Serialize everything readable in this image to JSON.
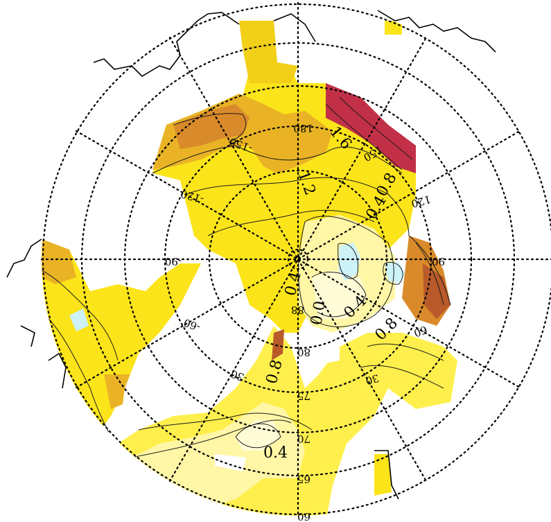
{
  "map": {
    "colors": {
      "level_0_0": "#cdf2f8",
      "level_0_2": "#fffbd6",
      "level_0_4": "#fff6a6",
      "level_0_6": "#ffef4c",
      "level_0_8": "#fbe41a",
      "level_1_0": "#f2cf18",
      "level_1_2": "#e9b325",
      "level_1_4": "#d98a2a",
      "level_1_6": "#b95a2a",
      "level_1_8": "#c23048"
    },
    "latitude_labels": [
      "88",
      "80",
      "75",
      "70",
      "65",
      "60"
    ],
    "longitude_labels": {
      "lon_m150": "-150",
      "lon_180": "180",
      "lon_150": "150",
      "lon_m120": "-120",
      "lon_120": "120",
      "lon_m90": "-90",
      "lon_90": "90",
      "lon_m60": "-60",
      "lon_60": "60",
      "lon_m30": "-30",
      "lon_30": "30"
    },
    "contour_labels": {
      "c_1_2": "1.2",
      "c_1_6": "1.6",
      "c_0_8_ne": "0.8",
      "c_0_4_ne": "0.4",
      "c_0_4_center": "0.4",
      "c_0_0": "0.0",
      "c_0_4_se": "0.4",
      "c_0_8_se": "0.8",
      "c_0_8_sw": "0.8",
      "c_0_4_s": "0.4"
    }
  }
}
